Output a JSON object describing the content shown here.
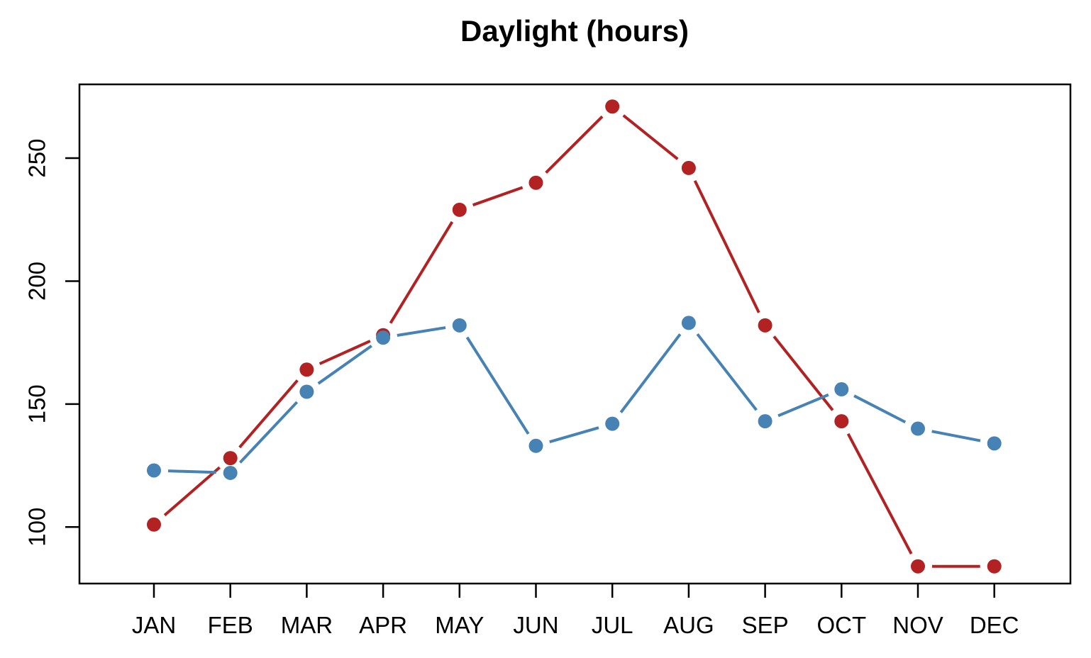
{
  "chart_data": {
    "type": "line",
    "title": "Daylight (hours)",
    "xlabel": "",
    "ylabel": "",
    "categories": [
      "JAN",
      "FEB",
      "MAR",
      "APR",
      "MAY",
      "JUN",
      "JUL",
      "AUG",
      "SEP",
      "OCT",
      "NOV",
      "DEC"
    ],
    "series": [
      {
        "name": "red-series",
        "color": "#b22222",
        "values": [
          101,
          128,
          164,
          178,
          229,
          240,
          271,
          246,
          182,
          143,
          84,
          84
        ]
      },
      {
        "name": "blue-series",
        "color": "#4682b4",
        "values": [
          123,
          122,
          155,
          177,
          182,
          133,
          142,
          183,
          143,
          156,
          140,
          134
        ]
      }
    ],
    "yticks": [
      100,
      150,
      200,
      250
    ],
    "ylim": [
      77,
      280
    ],
    "grid": false,
    "legend_position": "none",
    "marker": "filled-circle",
    "line_style": "both-points-and-lines-with-gaps",
    "axis_color": "#000000",
    "background_color": "#ffffff"
  }
}
